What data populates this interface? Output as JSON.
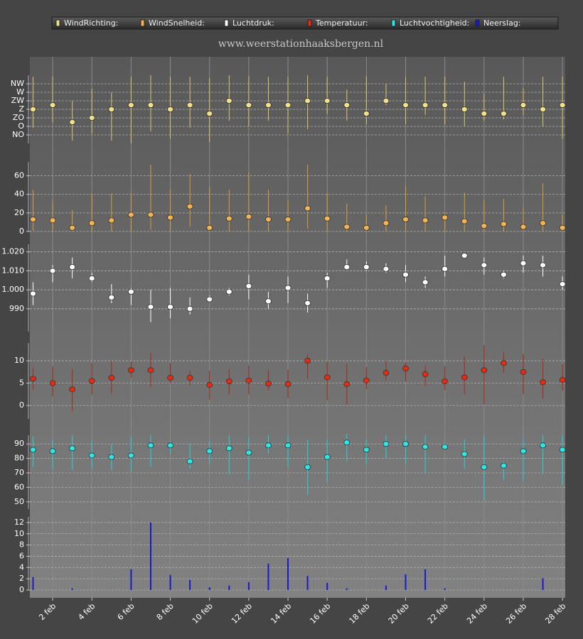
{
  "chart_data": {
    "type": "multi-panel",
    "title": "www.weerstationhaaksbergen.nl",
    "categories": [
      null,
      "2 feb",
      null,
      "4 feb",
      null,
      "6 feb",
      null,
      "8 feb",
      null,
      "10 feb",
      null,
      "12 feb",
      null,
      "14 feb",
      null,
      "16 feb",
      null,
      "18 feb",
      null,
      "20 feb",
      null,
      "22 feb",
      null,
      "24 feb",
      null,
      "26 feb",
      null,
      "28 feb"
    ],
    "grid": true,
    "panels": [
      {
        "type": "errorbar",
        "name": "WindRichting:",
        "color": "#f2e08a",
        "whisker_color": "#d9c66e",
        "ylim": [
          0,
          360
        ],
        "yticks": [
          {
            "value": 45,
            "label": "NO"
          },
          {
            "value": 90,
            "label": "O"
          },
          {
            "value": 135,
            "label": "ZO"
          },
          {
            "value": 180,
            "label": "Z"
          },
          {
            "value": 225,
            "label": "ZW"
          },
          {
            "value": 270,
            "label": "W"
          },
          {
            "value": 315,
            "label": "NW"
          }
        ],
        "values": [
          180,
          202.5,
          112.5,
          135,
          180,
          202.5,
          202.5,
          180,
          202.5,
          157.5,
          225,
          202.5,
          202.5,
          202.5,
          225,
          225,
          202.5,
          157.5,
          225,
          202.5,
          202.5,
          202.5,
          180,
          157.5,
          157.5,
          202.5,
          180,
          202.5
        ],
        "high": [
          352,
          352,
          225,
          289,
          270,
          352,
          360,
          352,
          352,
          345,
          360,
          356,
          352,
          352,
          360,
          352,
          285,
          352,
          315,
          352,
          352,
          352,
          326,
          262,
          352,
          292,
          352,
          352
        ],
        "low": [
          82,
          112,
          15,
          52,
          15,
          0,
          64,
          26,
          82,
          8,
          120,
          90,
          120,
          52,
          75,
          157,
          120,
          101,
          202,
          101,
          150,
          101,
          90,
          120,
          127,
          150,
          90,
          26
        ]
      },
      {
        "type": "errorbar",
        "name": "WindSnelheid:",
        "color": "#f5b451",
        "whisker_color": "#d99e3c",
        "ylim": [
          0,
          75
        ],
        "yticks": [
          0,
          20,
          40,
          60
        ],
        "values": [
          13,
          12,
          4,
          9,
          12,
          18,
          18,
          15,
          27,
          4,
          14,
          16,
          13,
          13,
          25,
          14,
          5,
          4,
          9,
          13,
          12,
          15,
          11,
          6,
          8,
          5,
          9,
          4
        ],
        "high": [
          45,
          33,
          23,
          41,
          41,
          41,
          72,
          45,
          62,
          48,
          45,
          64,
          45,
          34,
          72,
          41,
          30,
          18,
          28,
          49,
          38,
          20,
          42,
          34,
          35,
          26,
          52,
          18
        ],
        "low": [
          1,
          0,
          0,
          0,
          0,
          0,
          2,
          0,
          5,
          0,
          0,
          0,
          0,
          0,
          3,
          0,
          0,
          0,
          0,
          0,
          0,
          0,
          0,
          0,
          0,
          0,
          0,
          0
        ]
      },
      {
        "type": "errorbar",
        "name": "Luchtdruk:",
        "color": "#ffffff",
        "whisker_color": "#ffffff",
        "ylim": [
          978,
          1024
        ],
        "yticks": [
          990,
          {
            "value": 1000,
            "label": "1.000"
          },
          {
            "value": 1010,
            "label": "1.010"
          },
          {
            "value": 1020,
            "label": "1.020"
          }
        ],
        "values": [
          998,
          1010,
          1012,
          1006,
          996,
          999,
          991,
          991,
          990,
          995,
          999,
          1002,
          994,
          1001,
          993,
          1006,
          1012,
          1012,
          1011,
          1008,
          1004,
          1011,
          1018,
          1013,
          1008,
          1014,
          1013,
          1003
        ],
        "high": [
          1004,
          1013,
          1017,
          1009,
          1003,
          1001,
          1000,
          1001,
          996,
          997,
          1001,
          1008,
          999,
          1007,
          998,
          1009,
          1016,
          1015,
          1014,
          1013,
          1007,
          1018,
          1019,
          1017,
          1010,
          1018,
          1018,
          1007
        ],
        "low": [
          992,
          1004,
          1006,
          1004,
          993,
          992,
          983,
          985,
          987,
          994,
          997,
          995,
          990,
          993,
          988,
          1001,
          1011,
          1010,
          1009,
          1004,
          1001,
          1007,
          1017,
          1008,
          1006,
          1009,
          1007,
          1000
        ]
      },
      {
        "type": "errorbar",
        "name": "Temperatuur:",
        "color": "#e82a10",
        "whisker_color": "#a8281a",
        "ylim": [
          -3,
          14
        ],
        "yticks": [
          0,
          5,
          10
        ],
        "values": [
          6,
          5,
          3.6,
          5.5,
          6.2,
          7.9,
          7.9,
          6.2,
          6.2,
          4.6,
          5.4,
          5.6,
          4.9,
          4.8,
          10,
          6.3,
          4.8,
          5.6,
          7.3,
          8.3,
          7,
          5.4,
          6.3,
          7.9,
          9.5,
          7.5,
          5.2,
          5.7
        ],
        "high": [
          8.5,
          8.7,
          8.2,
          9.5,
          9.9,
          9.8,
          11.8,
          9.5,
          7.8,
          7.8,
          8.2,
          9,
          7.9,
          8,
          11.5,
          9.8,
          9.2,
          8.6,
          10,
          9.7,
          9,
          8.8,
          11,
          13.5,
          12,
          11.5,
          10.5,
          9.3
        ],
        "low": [
          3.5,
          2,
          -1.3,
          2.4,
          2.6,
          6.2,
          4,
          5,
          4.5,
          1.3,
          2.4,
          2.5,
          3.4,
          1.6,
          6,
          1.2,
          0.2,
          3.6,
          5.6,
          5.4,
          4.3,
          3.4,
          2.5,
          0.2,
          7.3,
          2.5,
          1.5,
          3.3
        ]
      },
      {
        "type": "errorbar",
        "name": "Luchtvochtigheid:",
        "color": "#2ee6e6",
        "whisker_color": "#25d4d4",
        "ylim": [
          45,
          96
        ],
        "yticks": [
          50,
          60,
          70,
          80,
          90
        ],
        "values": [
          86,
          85,
          87,
          82,
          81,
          82,
          89,
          89,
          78,
          85,
          87,
          84,
          89,
          89,
          74,
          81,
          91,
          86,
          90,
          90,
          88,
          88,
          83,
          74,
          75,
          85,
          89,
          86
        ],
        "high": [
          95,
          93,
          96,
          92,
          90,
          95,
          96,
          92,
          90,
          92,
          96,
          95,
          96,
          96,
          93,
          93,
          97,
          93,
          96,
          96,
          96,
          91,
          93,
          96,
          78,
          94,
          96,
          96
        ],
        "low": [
          74,
          73,
          72,
          73,
          72,
          71,
          74,
          83,
          73,
          76,
          69,
          65,
          83,
          74,
          55,
          64,
          78,
          76,
          80,
          76,
          70,
          86,
          73,
          51,
          65,
          65,
          70,
          62
        ]
      },
      {
        "type": "bar",
        "name": "Neerslag:",
        "color": "#1a1ac8",
        "ylim": [
          0,
          13
        ],
        "yticks": [
          0,
          2,
          4,
          6,
          8,
          10,
          12
        ],
        "values": [
          2.3,
          0,
          0.3,
          0,
          0,
          3.7,
          12,
          2.7,
          1.8,
          0.5,
          0.8,
          1.4,
          4.7,
          5.7,
          2.5,
          1.3,
          0.3,
          0,
          0.8,
          2.8,
          3.7,
          0.3,
          0,
          0,
          0,
          0,
          2.1,
          0
        ]
      }
    ]
  }
}
